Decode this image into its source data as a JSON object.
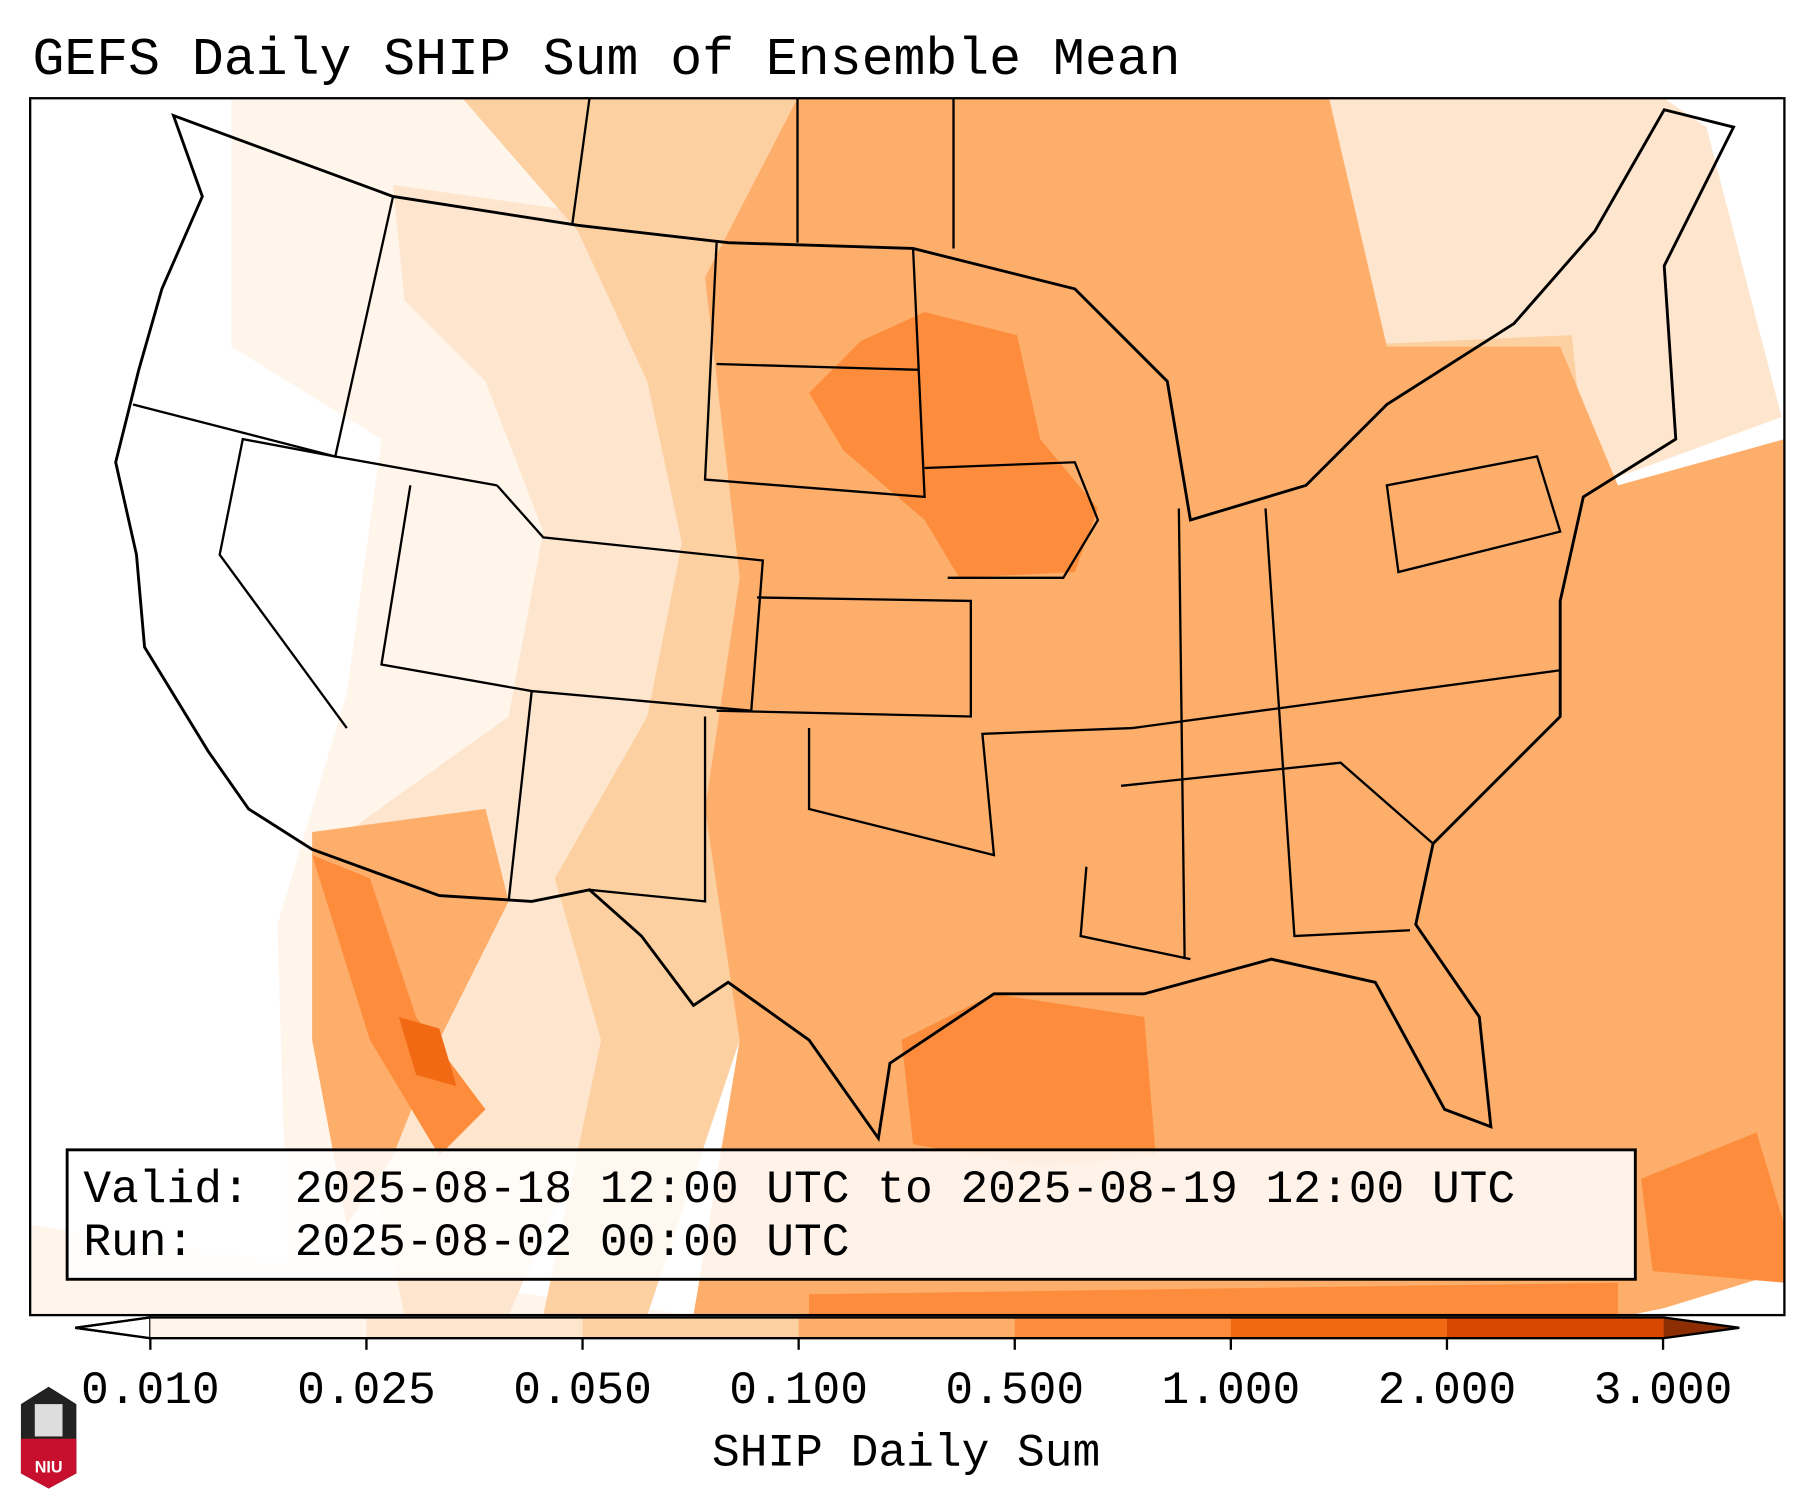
{
  "title": "GEFS Daily SHIP Sum of Ensemble Mean",
  "info_box": {
    "valid_label": "Valid:",
    "valid_value": "2025-08-18 12:00 UTC to 2025-08-19 12:00 UTC",
    "run_label": "Run:",
    "run_value": "2025-08-02 00:00 UTC"
  },
  "colorbar": {
    "label": "SHIP Daily Sum",
    "ticks": [
      "0.010",
      "0.025",
      "0.050",
      "0.100",
      "0.500",
      "1.000",
      "2.000",
      "3.000"
    ],
    "colors": [
      "#fff5eb",
      "#fee6ce",
      "#fdd0a2",
      "#fdae6b",
      "#fd8d3c",
      "#f16913",
      "#d94801"
    ],
    "under_color": "#ffffff",
    "over_color": "#8c2d04"
  },
  "logo": {
    "text": "NIU",
    "color": "#c8102e"
  }
}
